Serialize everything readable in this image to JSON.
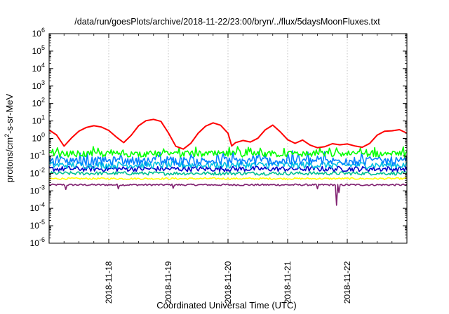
{
  "chart_data": {
    "type": "line",
    "title": "/data/run/goesPlots/archive/2018-11-22/23:00/bryn/../flux/5daysMoonFluxes.txt",
    "xlabel": "Coordinated Universal Time (UTC)",
    "ylabel": {
      "prefix": "protons/cm",
      "sup": "2",
      "suffix": "-s-sr-MeV"
    },
    "y_scale": "log",
    "ylim": [
      1e-06,
      1000000.0
    ],
    "xlim": [
      "2018-11-17T00:00",
      "2018-11-23T00:00"
    ],
    "grid": true,
    "y_ticks": [
      {
        "base": "10",
        "exp": "-6",
        "value": 1e-06
      },
      {
        "base": "10",
        "exp": "-5",
        "value": 1e-05
      },
      {
        "base": "10",
        "exp": "-4",
        "value": 0.0001
      },
      {
        "base": "10",
        "exp": "-3",
        "value": 0.001
      },
      {
        "base": "10",
        "exp": "-2",
        "value": 0.01
      },
      {
        "base": "10",
        "exp": "-1",
        "value": 0.1
      },
      {
        "base": "10",
        "exp": "0",
        "value": 1
      },
      {
        "base": "10",
        "exp": "1",
        "value": 10
      },
      {
        "base": "10",
        "exp": "2",
        "value": 100
      },
      {
        "base": "10",
        "exp": "3",
        "value": 1000
      },
      {
        "base": "10",
        "exp": "4",
        "value": 10000
      },
      {
        "base": "10",
        "exp": "5",
        "value": 100000
      },
      {
        "base": "10",
        "exp": "6",
        "value": 1000000
      }
    ],
    "x_ticks": [
      {
        "label": "2018-11-18",
        "value": "2018-11-18T00:00"
      },
      {
        "label": "2018-11-19",
        "value": "2018-11-19T00:00"
      },
      {
        "label": "2018-11-20",
        "value": "2018-11-20T00:00"
      },
      {
        "label": "2018-11-21",
        "value": "2018-11-21T00:00"
      },
      {
        "label": "2018-11-22",
        "value": "2018-11-22T00:00"
      }
    ],
    "series": [
      {
        "color": "#ff0000",
        "base": 3.0,
        "noise": 0.05,
        "points": [
          [
            "2018-11-17T00:00",
            3.0
          ],
          [
            "2018-11-17T03:00",
            1.5
          ],
          [
            "2018-11-17T06:00",
            0.35
          ],
          [
            "2018-11-17T09:00",
            1.0
          ],
          [
            "2018-11-17T12:00",
            2.5
          ],
          [
            "2018-11-17T15:00",
            4.5
          ],
          [
            "2018-11-17T18:00",
            5.5
          ],
          [
            "2018-11-17T21:00",
            4.5
          ],
          [
            "2018-11-18T00:00",
            3.0
          ],
          [
            "2018-11-18T03:00",
            1.2
          ],
          [
            "2018-11-18T06:00",
            0.6
          ],
          [
            "2018-11-18T09:00",
            1.5
          ],
          [
            "2018-11-18T12:00",
            5.0
          ],
          [
            "2018-11-18T15:00",
            10.0
          ],
          [
            "2018-11-18T18:00",
            12.0
          ],
          [
            "2018-11-18T21:00",
            9.0
          ],
          [
            "2018-11-19T00:00",
            2.0
          ],
          [
            "2018-11-19T03:00",
            0.35
          ],
          [
            "2018-11-19T06:00",
            0.25
          ],
          [
            "2018-11-19T09:00",
            0.5
          ],
          [
            "2018-11-19T12:00",
            2.0
          ],
          [
            "2018-11-19T15:00",
            5.0
          ],
          [
            "2018-11-19T18:00",
            8.0
          ],
          [
            "2018-11-19T21:00",
            6.0
          ],
          [
            "2018-11-20T00:00",
            2.0
          ],
          [
            "2018-11-20T01:30",
            0.35
          ],
          [
            "2018-11-20T03:00",
            0.6
          ],
          [
            "2018-11-20T06:00",
            0.8
          ],
          [
            "2018-11-20T09:00",
            0.6
          ],
          [
            "2018-11-20T12:00",
            1.0
          ],
          [
            "2018-11-20T15:00",
            3.0
          ],
          [
            "2018-11-20T18:00",
            5.5
          ],
          [
            "2018-11-20T21:00",
            2.5
          ],
          [
            "2018-11-21T00:00",
            0.8
          ],
          [
            "2018-11-21T03:00",
            0.55
          ],
          [
            "2018-11-21T06:00",
            0.8
          ],
          [
            "2018-11-21T09:00",
            0.4
          ],
          [
            "2018-11-21T12:00",
            0.3
          ],
          [
            "2018-11-21T15:00",
            0.35
          ],
          [
            "2018-11-21T18:00",
            0.5
          ],
          [
            "2018-11-21T21:00",
            0.45
          ],
          [
            "2018-11-22T00:00",
            0.5
          ],
          [
            "2018-11-22T03:00",
            0.35
          ],
          [
            "2018-11-22T06:00",
            0.3
          ],
          [
            "2018-11-22T09:00",
            0.5
          ],
          [
            "2018-11-22T12:00",
            1.5
          ],
          [
            "2018-11-22T15:00",
            2.5
          ],
          [
            "2018-11-22T18:00",
            2.8
          ],
          [
            "2018-11-22T21:00",
            3.0
          ],
          [
            "2018-11-23T00:00",
            2.0
          ]
        ]
      },
      {
        "color": "#00ff00",
        "base": 0.13,
        "noise": 0.18,
        "points": []
      },
      {
        "color": "#0080ff",
        "base": 0.05,
        "noise": 0.25,
        "points": []
      },
      {
        "color": "#00c0e0",
        "base": 0.03,
        "noise": 0.2,
        "points": []
      },
      {
        "color": "#0000c8",
        "base": 0.018,
        "noise": 0.15,
        "points": []
      },
      {
        "color": "#00c090",
        "base": 0.01,
        "noise": 0.1,
        "points": []
      },
      {
        "color": "#ffff00",
        "base": 0.005,
        "noise": 0.05,
        "points": []
      },
      {
        "color": "#802070",
        "base": 0.0022,
        "noise": 0.05,
        "points": []
      }
    ],
    "dips": [
      {
        "series": 7,
        "at": "2018-11-17T06:30",
        "value": 0.0012
      },
      {
        "series": 7,
        "at": "2018-11-18T04:00",
        "value": 0.0013
      },
      {
        "series": 7,
        "at": "2018-11-19T02:00",
        "value": 0.0014
      },
      {
        "series": 7,
        "at": "2018-11-21T12:00",
        "value": 0.0013
      },
      {
        "series": 7,
        "at": "2018-11-21T19:30",
        "value": 0.00015
      },
      {
        "series": 7,
        "at": "2018-11-21T20:30",
        "value": 0.0008
      }
    ]
  }
}
